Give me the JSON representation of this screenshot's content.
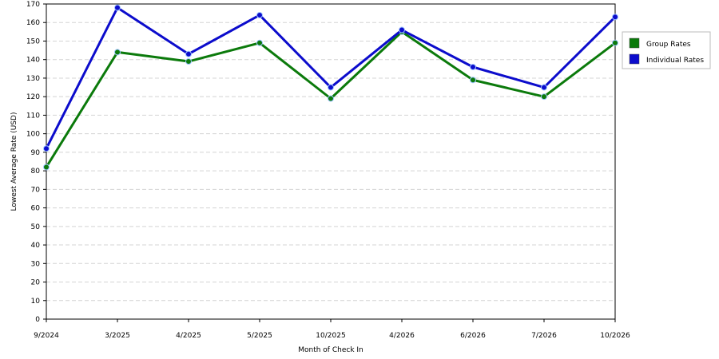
{
  "chart_data": {
    "type": "line",
    "xlabel": "Month of Check In",
    "ylabel": "Lowest Average Rate (USD)",
    "ylim": [
      0,
      170
    ],
    "ytick_step": 10,
    "grid": "horizontal dashed",
    "legend_position": "right",
    "categories": [
      "9/2024",
      "3/2025",
      "4/2025",
      "5/2025",
      "10/2025",
      "4/2026",
      "6/2026",
      "7/2026",
      "10/2026"
    ],
    "series": [
      {
        "name": "Group Rates",
        "color": "#0b7a0b",
        "values": [
          82,
          144,
          139,
          149,
          119,
          155,
          129,
          120,
          149
        ]
      },
      {
        "name": "Individual Rates",
        "color": "#0c0ccc",
        "values": [
          92,
          168,
          143,
          164,
          125,
          156,
          136,
          125,
          163
        ]
      }
    ]
  }
}
